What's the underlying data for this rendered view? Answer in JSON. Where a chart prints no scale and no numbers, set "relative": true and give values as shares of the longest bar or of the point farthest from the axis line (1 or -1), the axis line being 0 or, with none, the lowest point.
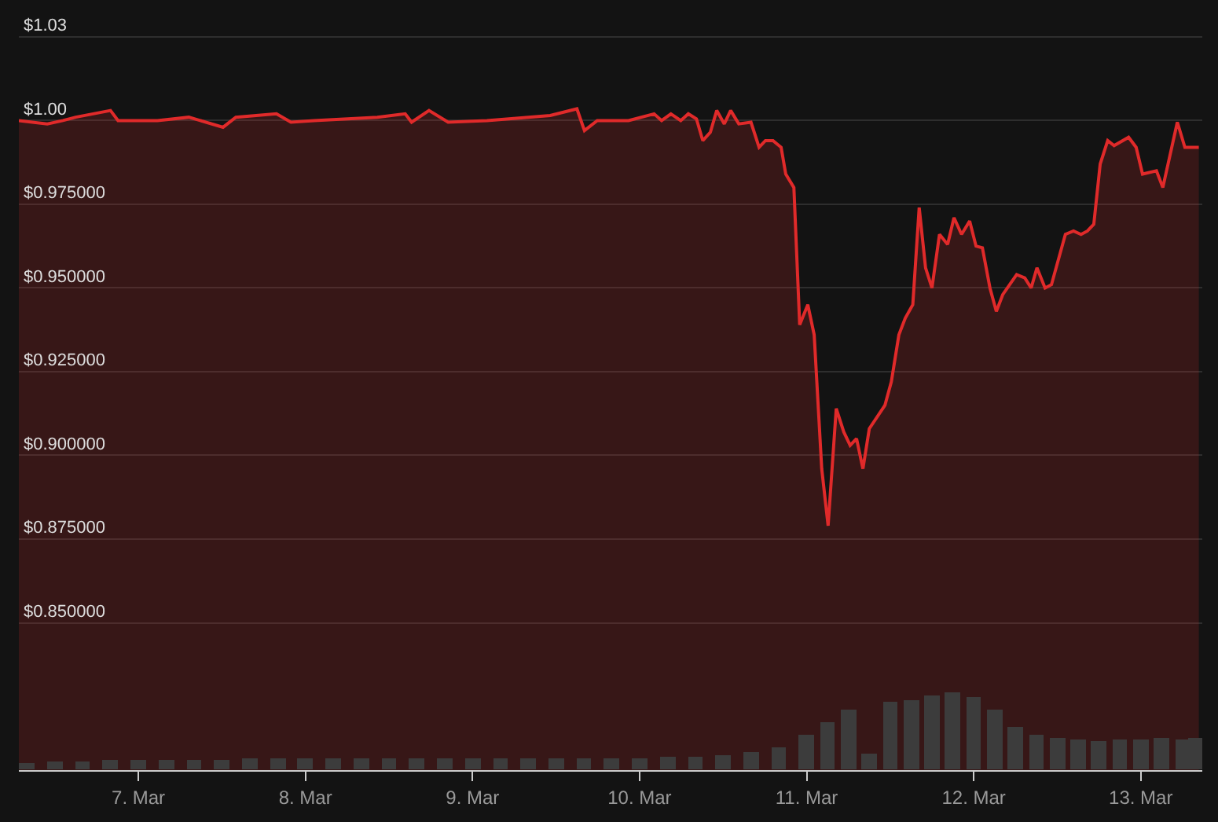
{
  "chart_data": [
    {
      "type": "area",
      "tick_labels": "y",
      "grid": "y",
      "xlim": [
        "--03-06T06:50",
        "--03-13T08:50"
      ],
      "ylim": [
        0.806,
        1.036
      ],
      "yticks": [
        {
          "value": 0.85,
          "label": "$0.850000"
        },
        {
          "value": 0.875,
          "label": "$0.875000"
        },
        {
          "value": 0.9,
          "label": "$0.900000"
        },
        {
          "value": 0.925,
          "label": "$0.925000"
        },
        {
          "value": 0.95,
          "label": "$0.950000"
        },
        {
          "value": 0.975,
          "label": "$0.975000"
        },
        {
          "value": 1.0,
          "label": "$1.00"
        },
        {
          "value": 1.025,
          "label": "$1.03"
        }
      ],
      "series": [
        {
          "color": "#e02a2a",
          "x": [
            "--03-06T06:50",
            "--03-06T10:55",
            "--03-06T13:10",
            "--03-06T15:00",
            "--03-06T20:00",
            "--03-06T21:05",
            "--03-07T02:45",
            "--03-07T07:15",
            "--03-07T12:10",
            "--03-07T14:00",
            "--03-07T19:50",
            "--03-07T21:55",
            "--03-08T01:15",
            "--03-08T10:20",
            "--03-08T14:20",
            "--03-08T15:15",
            "--03-08T17:45",
            "--03-08T20:30",
            "--03-09T02:05",
            "--03-09T11:10",
            "--03-09T15:00",
            "--03-09T16:05",
            "--03-09T17:55",
            "--03-09T22:25",
            "--03-10T02:05",
            "--03-10T03:10",
            "--03-10T04:30",
            "--03-10T05:55",
            "--03-10T07:00",
            "--03-10T08:10",
            "--03-10T09:05",
            "--03-10T10:10",
            "--03-10T11:05",
            "--03-10T12:10",
            "--03-10T13:05",
            "--03-10T14:15",
            "--03-10T16:00",
            "--03-10T17:10",
            "--03-10T18:05",
            "--03-10T19:10",
            "--03-10T20:20",
            "--03-10T21:00",
            "--03-10T22:10",
            "--03-10T23:00",
            "--03-11T00:10",
            "--03-11T01:05",
            "--03-11T02:10",
            "--03-11T03:05",
            "--03-11T04:15",
            "--03-11T05:20",
            "--03-11T06:15",
            "--03-11T07:10",
            "--03-11T08:05",
            "--03-11T09:00",
            "--03-11T11:15",
            "--03-11T12:10",
            "--03-11T13:15",
            "--03-11T14:10",
            "--03-11T15:15",
            "--03-11T16:10",
            "--03-11T17:05",
            "--03-11T18:00",
            "--03-11T19:05",
            "--03-11T20:15",
            "--03-11T21:10",
            "--03-11T22:15",
            "--03-11T23:25",
            "--03-12T00:20",
            "--03-12T01:15",
            "--03-12T02:20",
            "--03-12T03:15",
            "--03-12T04:10",
            "--03-12T06:10",
            "--03-12T07:20",
            "--03-12T08:15",
            "--03-12T09:05",
            "--03-12T10:15",
            "--03-12T11:10",
            "--03-12T13:10",
            "--03-12T14:20",
            "--03-12T15:25",
            "--03-12T16:20",
            "--03-12T17:15",
            "--03-12T18:10",
            "--03-12T19:15",
            "--03-12T20:10",
            "--03-12T22:15",
            "--03-12T23:20",
            "--03-13T00:15",
            "--03-13T02:15",
            "--03-13T03:10",
            "--03-13T05:15",
            "--03-13T06:20",
            "--03-13T08:20"
          ],
          "values": [
            1.0,
            0.999,
            1.0,
            1.001,
            1.003,
            1.0,
            1.0,
            1.001,
            0.998,
            1.001,
            1.002,
            0.9995,
            1.0,
            1.001,
            1.002,
            0.9995,
            1.003,
            0.9995,
            1.0,
            1.0015,
            1.0035,
            0.997,
            1.0,
            1.0,
            1.002,
            1.0,
            1.002,
            1.0,
            1.002,
            1.0005,
            0.994,
            0.9965,
            1.003,
            0.999,
            1.003,
            0.999,
            0.9995,
            0.992,
            0.994,
            0.994,
            0.992,
            0.984,
            0.98,
            0.939,
            0.945,
            0.936,
            0.896,
            0.879,
            0.914,
            0.907,
            0.903,
            0.905,
            0.896,
            0.908,
            0.915,
            0.922,
            0.936,
            0.941,
            0.945,
            0.974,
            0.956,
            0.95,
            0.966,
            0.963,
            0.971,
            0.966,
            0.97,
            0.9625,
            0.962,
            0.95,
            0.943,
            0.948,
            0.954,
            0.953,
            0.95,
            0.956,
            0.95,
            0.951,
            0.966,
            0.967,
            0.966,
            0.967,
            0.969,
            0.987,
            0.994,
            0.9925,
            0.995,
            0.992,
            0.984,
            0.985,
            0.98,
            0.9995,
            0.992,
            0.992
          ]
        }
      ]
    },
    {
      "type": "bar",
      "relative": true,
      "tick_labels": "x",
      "xlim": [
        "--03-06T06:50",
        "--03-13T08:50"
      ],
      "xticks": [
        {
          "value": "--03-07",
          "label": "7. Mar"
        },
        {
          "value": "--03-08",
          "label": "8. Mar"
        },
        {
          "value": "--03-09",
          "label": "9. Mar"
        },
        {
          "value": "--03-10",
          "label": "10. Mar"
        },
        {
          "value": "--03-11",
          "label": "11. Mar"
        },
        {
          "value": "--03-12",
          "label": "12. Mar"
        },
        {
          "value": "--03-13",
          "label": "13. Mar"
        }
      ],
      "series": [
        {
          "color": "#3c3c3c",
          "x": [
            "--03-06T08:00",
            "--03-06T12:00",
            "--03-06T16:00",
            "--03-06T20:00",
            "--03-07T00:00",
            "--03-07T04:00",
            "--03-07T08:00",
            "--03-07T12:00",
            "--03-07T16:00",
            "--03-07T20:00",
            "--03-08T00:00",
            "--03-08T04:00",
            "--03-08T08:00",
            "--03-08T12:00",
            "--03-08T16:00",
            "--03-08T20:00",
            "--03-09T00:00",
            "--03-09T04:00",
            "--03-09T08:00",
            "--03-09T12:00",
            "--03-09T16:00",
            "--03-09T20:00",
            "--03-10T00:00",
            "--03-10T04:00",
            "--03-10T08:00",
            "--03-10T12:00",
            "--03-10T16:00",
            "--03-10T20:00",
            "--03-11T00:00",
            "--03-11T03:00",
            "--03-11T06:00",
            "--03-11T09:00",
            "--03-11T12:00",
            "--03-11T15:00",
            "--03-11T18:00",
            "--03-11T21:00",
            "--03-12T00:00",
            "--03-12T03:00",
            "--03-12T06:00",
            "--03-12T09:00",
            "--03-12T12:00",
            "--03-12T15:00",
            "--03-12T18:00",
            "--03-12T21:00",
            "--03-13T00:00",
            "--03-13T03:00",
            "--03-13T06:00",
            "--03-13T08:00"
          ],
          "values": [
            0.08,
            0.1,
            0.11,
            0.12,
            0.12,
            0.12,
            0.13,
            0.13,
            0.14,
            0.14,
            0.14,
            0.15,
            0.16,
            0.16,
            0.15,
            0.15,
            0.14,
            0.14,
            0.14,
            0.15,
            0.15,
            0.14,
            0.15,
            0.17,
            0.18,
            0.2,
            0.24,
            0.3,
            0.45,
            0.62,
            0.78,
            0.22,
            0.88,
            0.9,
            0.96,
            1.0,
            0.95,
            0.78,
            0.55,
            0.45,
            0.42,
            0.4,
            0.38,
            0.4,
            0.4,
            0.41,
            0.4,
            0.41
          ]
        }
      ]
    }
  ]
}
